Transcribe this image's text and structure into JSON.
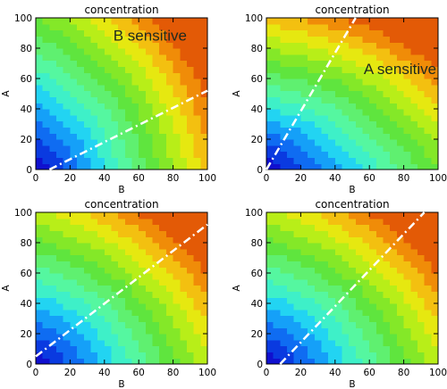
{
  "chart_data": [
    {
      "type": "heatmap",
      "subtype": "filled-contour",
      "title": "concentration",
      "xlabel": "B",
      "ylabel": "A",
      "xlim": [
        0,
        100
      ],
      "ylim": [
        0,
        100
      ],
      "xticks": [
        "0",
        "20",
        "40",
        "60",
        "80",
        "100"
      ],
      "yticks": [
        "0",
        "20",
        "40",
        "60",
        "80",
        "100"
      ],
      "annotation": "B sensitive",
      "boundary_line": [
        [
          8,
          0
        ],
        [
          100,
          52
        ]
      ],
      "line_style": "dash-dot",
      "line_color": "#ffffff",
      "contour_levels": 14,
      "sensitivity": {
        "A": 1.0,
        "B": 2.3
      },
      "colormap": [
        "#1010cf",
        "#0a3ae0",
        "#0f6cf2",
        "#15a0f8",
        "#22d4f2",
        "#3ef0c8",
        "#55f7a0",
        "#5ff070",
        "#5fe53e",
        "#84e828",
        "#b8ee18",
        "#e6e810",
        "#f3c010",
        "#f08c08",
        "#e35a06"
      ]
    },
    {
      "type": "heatmap",
      "subtype": "filled-contour",
      "title": "concentration",
      "xlabel": "B",
      "ylabel": "A",
      "xlim": [
        0,
        100
      ],
      "ylim": [
        0,
        100
      ],
      "xticks": [
        "0",
        "20",
        "40",
        "60",
        "80",
        "100"
      ],
      "yticks": [
        "0",
        "20",
        "40",
        "60",
        "80",
        "100"
      ],
      "annotation": "A sensitive",
      "boundary_line": [
        [
          0,
          0
        ],
        [
          52,
          100
        ]
      ],
      "line_style": "dash-dot",
      "line_color": "#ffffff",
      "contour_levels": 14,
      "sensitivity": {
        "A": 2.3,
        "B": 1.0
      },
      "colormap": [
        "#1010cf",
        "#0a3ae0",
        "#0f6cf2",
        "#15a0f8",
        "#22d4f2",
        "#3ef0c8",
        "#55f7a0",
        "#5ff070",
        "#5fe53e",
        "#84e828",
        "#b8ee18",
        "#e6e810",
        "#f3c010",
        "#f08c08",
        "#e35a06"
      ]
    },
    {
      "type": "heatmap",
      "subtype": "filled-contour",
      "title": "concentration",
      "xlabel": "B",
      "ylabel": "A",
      "xlim": [
        0,
        100
      ],
      "ylim": [
        0,
        100
      ],
      "xticks": [
        "0",
        "20",
        "40",
        "60",
        "80",
        "100"
      ],
      "yticks": [
        "0",
        "20",
        "40",
        "60",
        "80",
        "100"
      ],
      "annotation": "",
      "boundary_line": [
        [
          0,
          5
        ],
        [
          100,
          92
        ]
      ],
      "line_style": "dash-dot",
      "line_color": "#ffffff",
      "contour_levels": 14,
      "sensitivity": {
        "A": 1.0,
        "B": 1.0
      },
      "colormap": [
        "#1010cf",
        "#0a3ae0",
        "#0f6cf2",
        "#15a0f8",
        "#22d4f2",
        "#3ef0c8",
        "#55f7a0",
        "#5ff070",
        "#5fe53e",
        "#84e828",
        "#b8ee18",
        "#e6e810",
        "#f3c010",
        "#f08c08",
        "#e35a06"
      ]
    },
    {
      "type": "heatmap",
      "subtype": "filled-contour",
      "title": "concentration",
      "xlabel": "B",
      "ylabel": "A",
      "xlim": [
        0,
        100
      ],
      "ylim": [
        0,
        100
      ],
      "xticks": [
        "0",
        "20",
        "40",
        "60",
        "80",
        "100"
      ],
      "yticks": [
        "0",
        "20",
        "40",
        "60",
        "80",
        "100"
      ],
      "annotation": "",
      "boundary_line": [
        [
          8,
          0
        ],
        [
          92,
          100
        ]
      ],
      "line_style": "dash-dot",
      "line_color": "#ffffff",
      "contour_levels": 14,
      "sensitivity": {
        "A": 1.0,
        "B": 1.0
      },
      "colormap": [
        "#1010cf",
        "#0a3ae0",
        "#0f6cf2",
        "#15a0f8",
        "#22d4f2",
        "#3ef0c8",
        "#55f7a0",
        "#5ff070",
        "#5fe53e",
        "#84e828",
        "#b8ee18",
        "#e6e810",
        "#f3c010",
        "#f08c08",
        "#e35a06"
      ]
    }
  ]
}
